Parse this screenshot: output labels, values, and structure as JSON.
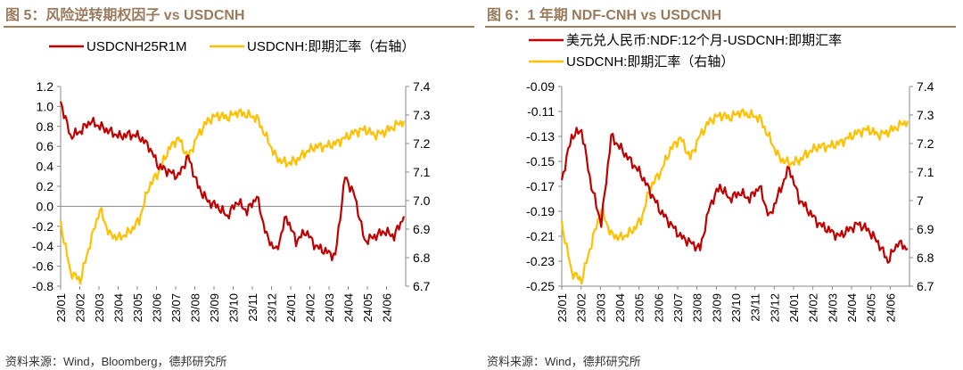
{
  "chart_data": [
    {
      "type": "line",
      "title": "图 5：风险逆转期权因子 vs USDCNH",
      "x_ticks": [
        "23/01",
        "23/02",
        "23/03",
        "23/04",
        "23/05",
        "23/06",
        "23/07",
        "23/08",
        "23/09",
        "23/10",
        "23/11",
        "23/12",
        "24/01",
        "24/02",
        "24/03",
        "24/04",
        "24/05",
        "24/06"
      ],
      "y_left": {
        "ticks": [
          "1.2",
          "1.0",
          "0.8",
          "0.6",
          "0.4",
          "0.2",
          "0.0",
          "-0.2",
          "-0.4",
          "-0.6",
          "-0.8"
        ],
        "range": [
          -0.8,
          1.2
        ]
      },
      "y_right": {
        "ticks": [
          "7.4",
          "7.3",
          "7.2",
          "7.1",
          "7.0",
          "6.9",
          "6.8",
          "6.7"
        ],
        "range": [
          6.7,
          7.4
        ]
      },
      "legend": "top-center",
      "series": [
        {
          "name": "USDCNH25R1M",
          "axis": "left",
          "color": "#c00000",
          "values": [
            1.05,
            0.7,
            0.75,
            0.85,
            0.8,
            0.75,
            0.7,
            0.72,
            0.7,
            0.6,
            0.4,
            0.35,
            0.3,
            0.5,
            0.2,
            0.05,
            0.0,
            -0.1,
            0.05,
            -0.05,
            0.1,
            -0.3,
            -0.45,
            -0.1,
            -0.35,
            -0.25,
            -0.4,
            -0.45,
            -0.5,
            0.3,
            0.1,
            -0.35,
            -0.3,
            -0.25,
            -0.3,
            -0.1
          ]
        },
        {
          "name": "USDCNH:即期汇率（右轴）",
          "axis": "right",
          "color": "#ffc000",
          "values": [
            6.92,
            6.75,
            6.72,
            6.85,
            6.97,
            6.88,
            6.87,
            6.89,
            6.93,
            7.05,
            7.1,
            7.18,
            7.22,
            7.15,
            7.23,
            7.28,
            7.3,
            7.29,
            7.31,
            7.3,
            7.29,
            7.22,
            7.15,
            7.13,
            7.14,
            7.17,
            7.19,
            7.19,
            7.2,
            7.22,
            7.24,
            7.25,
            7.23,
            7.24,
            7.26,
            7.28
          ]
        }
      ],
      "source": "资料来源：Wind，Bloomberg，德邦研究所"
    },
    {
      "type": "line",
      "title": "图 6：1 年期 NDF-CNH vs USDCNH",
      "x_ticks": [
        "23/01",
        "23/02",
        "23/03",
        "23/04",
        "23/05",
        "23/06",
        "23/07",
        "23/08",
        "23/09",
        "23/10",
        "23/11",
        "23/12",
        "24/01",
        "24/02",
        "24/03",
        "24/04",
        "24/05",
        "24/06"
      ],
      "y_left": {
        "ticks": [
          "-0.09",
          "-0.11",
          "-0.13",
          "-0.15",
          "-0.17",
          "-0.19",
          "-0.21",
          "-0.23",
          "-0.25"
        ],
        "range": [
          -0.25,
          -0.09
        ]
      },
      "y_right": {
        "ticks": [
          "7.4",
          "7.3",
          "7.2",
          "7.1",
          "7",
          "6.9",
          "6.8",
          "6.7"
        ],
        "range": [
          6.7,
          7.4
        ]
      },
      "legend": "top-center",
      "series": [
        {
          "name": "美元兑人民币:NDF:12个月-USDCNH:即期汇率",
          "axis": "left",
          "color": "#c00000",
          "values": [
            -0.165,
            -0.13,
            -0.125,
            -0.17,
            -0.2,
            -0.13,
            -0.14,
            -0.15,
            -0.16,
            -0.175,
            -0.19,
            -0.2,
            -0.21,
            -0.215,
            -0.22,
            -0.185,
            -0.17,
            -0.18,
            -0.175,
            -0.18,
            -0.17,
            -0.195,
            -0.175,
            -0.155,
            -0.18,
            -0.19,
            -0.2,
            -0.205,
            -0.21,
            -0.205,
            -0.2,
            -0.205,
            -0.215,
            -0.23,
            -0.215,
            -0.22
          ]
        },
        {
          "name": "USDCNH:即期汇率（右轴）",
          "axis": "right",
          "color": "#ffc000",
          "values": [
            6.92,
            6.75,
            6.72,
            6.85,
            6.97,
            6.88,
            6.87,
            6.89,
            6.93,
            7.05,
            7.1,
            7.18,
            7.22,
            7.15,
            7.23,
            7.28,
            7.3,
            7.29,
            7.31,
            7.3,
            7.29,
            7.22,
            7.15,
            7.13,
            7.14,
            7.17,
            7.19,
            7.19,
            7.2,
            7.22,
            7.24,
            7.25,
            7.23,
            7.24,
            7.26,
            7.28
          ]
        }
      ],
      "source": "资料来源：Wind，德邦研究所"
    }
  ]
}
